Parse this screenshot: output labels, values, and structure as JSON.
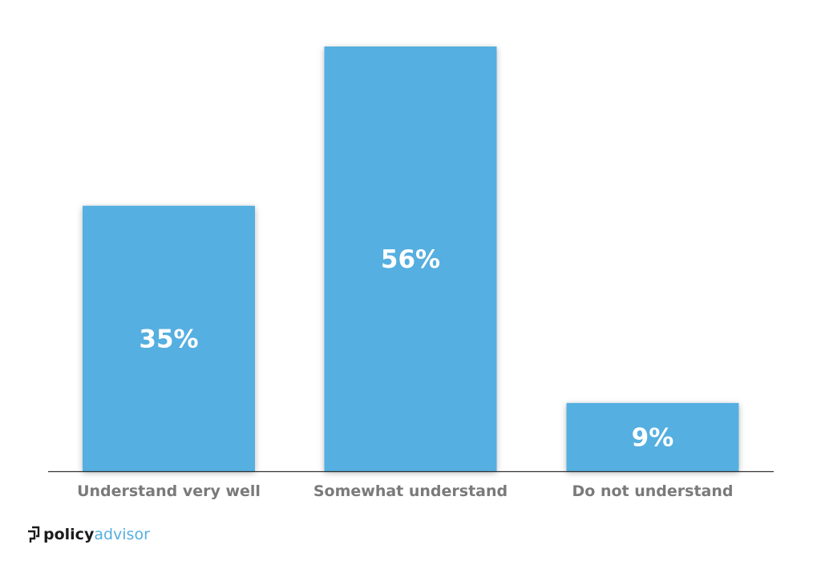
{
  "chart_data": {
    "type": "bar",
    "categories": [
      "Understand very well",
      "Somewhat understand",
      "Do not understand"
    ],
    "values": [
      35,
      56,
      9
    ],
    "data_labels": [
      "35%",
      "56%",
      "9%"
    ],
    "title": "",
    "xlabel": "",
    "ylabel": "",
    "ylim": [
      0,
      56
    ],
    "grid": false,
    "legend": "none",
    "bar_color": "#55afe0"
  },
  "brand": {
    "logo_part1": "policy",
    "logo_part2": "advisor",
    "icon": "policyadvisor-logo-icon",
    "primary_color": "#1c1c1c",
    "accent_color": "#55afe0"
  }
}
